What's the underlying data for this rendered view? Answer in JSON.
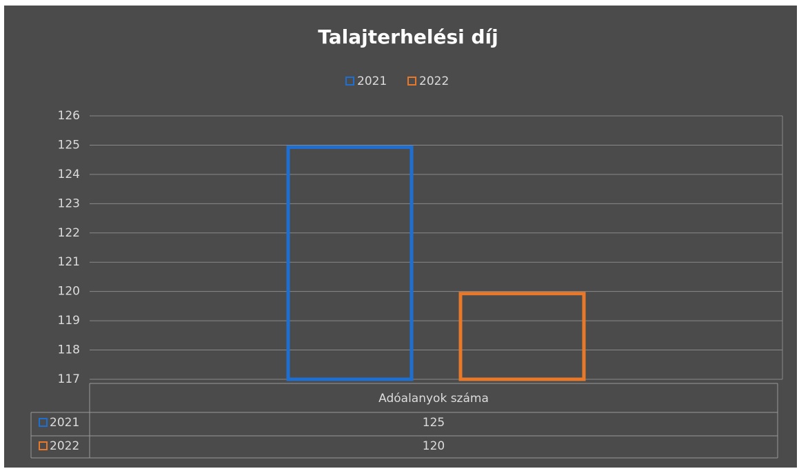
{
  "chart_data": {
    "type": "bar",
    "title": "Talajterhelési díj",
    "categories": [
      "Adóalanyok száma"
    ],
    "series": [
      {
        "name": "2021",
        "color": "#1f6fd1",
        "values": [
          125
        ]
      },
      {
        "name": "2022",
        "color": "#e8782a",
        "values": [
          120
        ]
      }
    ],
    "ylim": [
      117,
      126
    ],
    "yticks": [
      117,
      118,
      119,
      120,
      121,
      122,
      123,
      124,
      125,
      126
    ],
    "grid": true,
    "legend": "top",
    "data_table": true
  }
}
